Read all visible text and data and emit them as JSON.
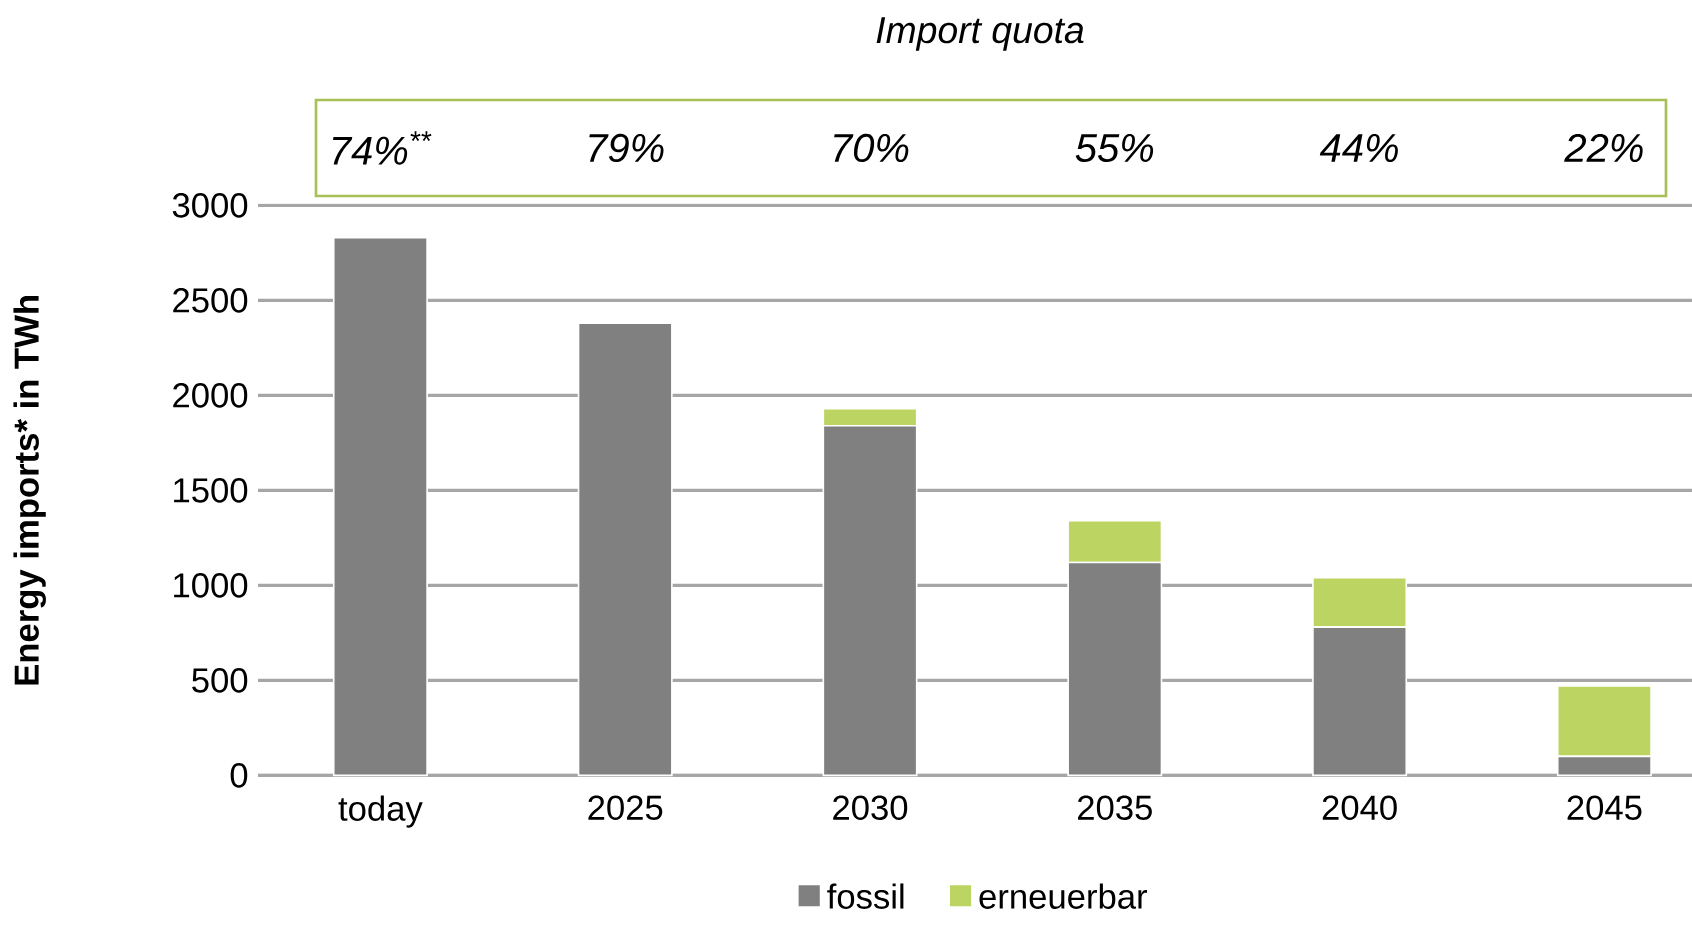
{
  "chart_data": {
    "type": "bar",
    "stacked": true,
    "title": "Import quota",
    "ylabel": "Energy imports* in TWh",
    "categories": [
      "today",
      "2025",
      "2030",
      "2035",
      "2040",
      "2045"
    ],
    "series": [
      {
        "name": "fossil",
        "color": "#808080",
        "values": [
          2830,
          2380,
          1840,
          1120,
          780,
          100
        ]
      },
      {
        "name": "erneuerbar",
        "color": "#bcd462",
        "values": [
          0,
          0,
          90,
          220,
          260,
          370
        ]
      }
    ],
    "annotations": [
      "74%$^{**}$",
      "79%",
      "70%",
      "55%",
      "44%",
      "22%"
    ],
    "ylim": [
      0,
      3000
    ],
    "yticks": [
      0,
      500,
      1000,
      1500,
      2000,
      2500,
      3000
    ],
    "grid": "y",
    "legend": "bottom"
  }
}
